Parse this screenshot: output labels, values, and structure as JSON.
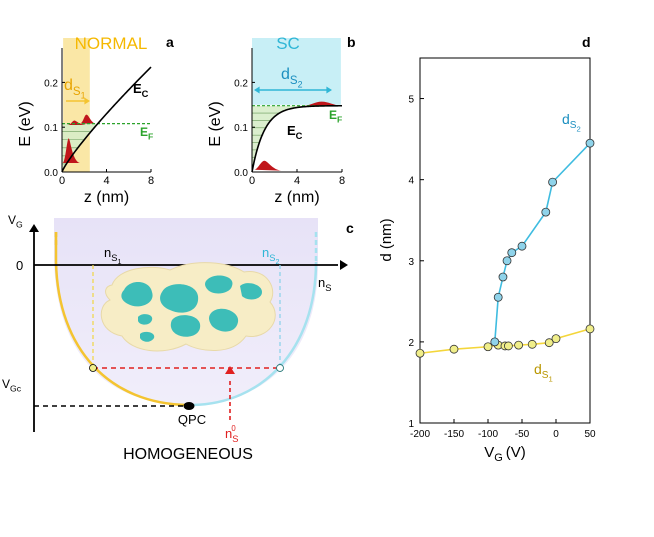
{
  "colors": {
    "normal": "#F4C430",
    "normal_fill": "#FAE7A6",
    "sc": "#2FB6D6",
    "sc_fill": "#C8EFF6",
    "fermi": "#2BA32B",
    "wave": "#C0161B",
    "dome": "#DCD6F0",
    "marker_yellow": "#F0EE8A",
    "marker_blue": "#8FD3EA",
    "blob": "#F7EDC6",
    "island": "#3DBDB8"
  },
  "panel_a": {
    "letter": "a",
    "title": "NORMAL",
    "ylabel": "E (eV)",
    "xlabel": "z (nm)",
    "yticks": [
      "0.0",
      "0.1",
      "0.2"
    ],
    "xticks": [
      "0",
      "4",
      "8"
    ],
    "ds_label": "d",
    "ds_sub": "S",
    "ds_subsub": "1",
    "ec_label": "E",
    "ec_sub": "C",
    "ef_label": "E",
    "ef_sub": "F"
  },
  "panel_b": {
    "letter": "b",
    "title": "SC",
    "ylabel": "E (eV)",
    "xlabel": "z (nm)",
    "yticks": [
      "0.0",
      "0.1",
      "0.2"
    ],
    "xticks": [
      "0",
      "4",
      "8"
    ],
    "ds_label": "d",
    "ds_sub": "S",
    "ds_subsub": "2",
    "ec_label": "E",
    "ec_sub": "C",
    "ef_label": "E",
    "ef_sub": "F"
  },
  "panel_c": {
    "letter": "c",
    "vg": "V",
    "vg_sub": "G",
    "vgc": "V",
    "vgc_sub": "Gc",
    "zero": "0",
    "ns": "n",
    "ns_sub": "S",
    "ns1": "n",
    "ns1_sub": "S",
    "ns1_subsub": "1",
    "ns2": "n",
    "ns2_sub": "S",
    "ns2_subsub": "2",
    "qpc": "QPC",
    "n0": "n",
    "n0_sub": "S",
    "n0_sup": "0",
    "caption": "HOMOGENEOUS"
  },
  "chart_data": {
    "type": "scatter",
    "panel_letter": "d",
    "xlabel": "V",
    "xlabel_sub": "G",
    "xlabel_unit": "(V)",
    "ylabel": "d (nm)",
    "xlim": [
      -200,
      50
    ],
    "ylim": [
      1,
      5.5
    ],
    "xticks": [
      "-200",
      "-150",
      "-100",
      "-50",
      "0",
      "50"
    ],
    "yticks": [
      "1",
      "2",
      "3",
      "4",
      "5"
    ],
    "grid": false,
    "series": [
      {
        "name": "d",
        "name_sub": "S",
        "name_subsub": "1",
        "color": "#F0EE8A",
        "line": "#F4D63A",
        "x": [
          -200,
          -150,
          -100,
          -85,
          -75,
          -70,
          -55,
          -35,
          -10,
          0,
          50
        ],
        "y": [
          1.86,
          1.91,
          1.94,
          1.96,
          1.95,
          1.95,
          1.96,
          1.97,
          1.99,
          2.04,
          2.16
        ]
      },
      {
        "name": "d",
        "name_sub": "S",
        "name_subsub": "2",
        "color": "#8FD3EA",
        "line": "#3FBCE0",
        "x": [
          -90,
          -85,
          -78,
          -72,
          -65,
          -50,
          -15,
          -5,
          50
        ],
        "y": [
          2.0,
          2.55,
          2.8,
          3.0,
          3.1,
          3.18,
          3.6,
          3.97,
          4.45
        ]
      }
    ]
  }
}
